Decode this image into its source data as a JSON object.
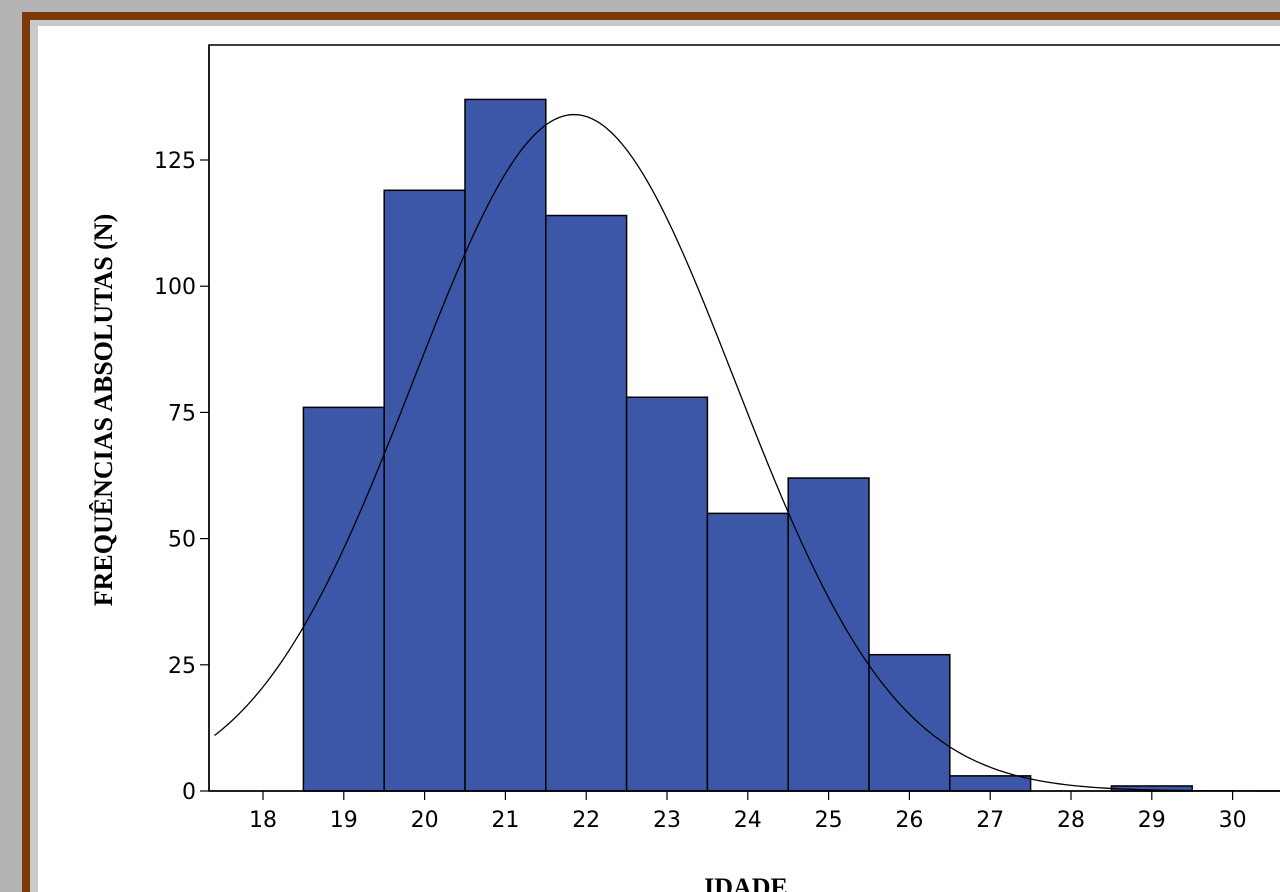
{
  "chart_data": {
    "type": "bar",
    "subtype": "histogram",
    "xlabel": "IDADE",
    "ylabel": "FREQUÊNCIAS ABSOLUTAS (N)",
    "xlim": [
      17.4,
      31.0
    ],
    "ylim": [
      0,
      148
    ],
    "x_ticks": [
      18,
      19,
      20,
      21,
      22,
      23,
      24,
      25,
      26,
      27,
      28,
      29,
      30
    ],
    "y_ticks": [
      0,
      25,
      50,
      75,
      100,
      125
    ],
    "bins": [
      {
        "x": 19,
        "count": 76
      },
      {
        "x": 20,
        "count": 119
      },
      {
        "x": 21,
        "count": 137
      },
      {
        "x": 22,
        "count": 114
      },
      {
        "x": 23,
        "count": 78
      },
      {
        "x": 24,
        "count": 55
      },
      {
        "x": 25,
        "count": 62
      },
      {
        "x": 26,
        "count": 27
      },
      {
        "x": 27,
        "count": 3
      },
      {
        "x": 29,
        "count": 1
      }
    ],
    "bin_width": 1,
    "bar_color": "#3c57a8",
    "normal_curve": {
      "mean": 21.85,
      "sd": 1.99,
      "peak": 134
    }
  }
}
